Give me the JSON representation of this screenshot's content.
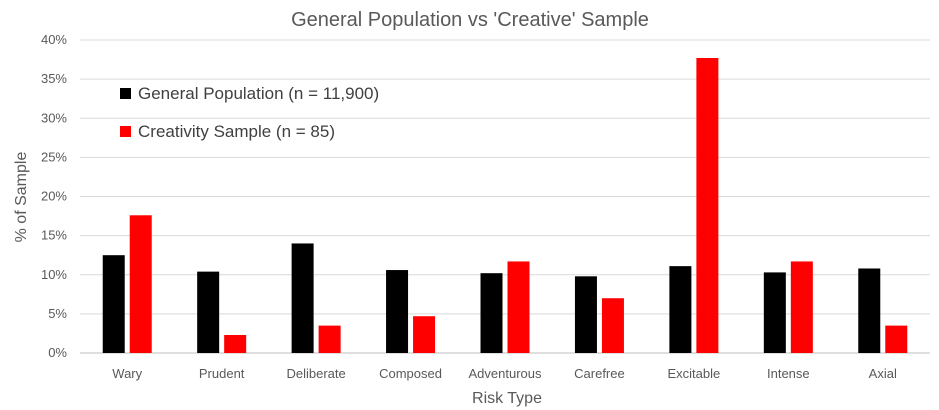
{
  "chart_data": {
    "type": "bar",
    "title": "General Population vs 'Creative' Sample",
    "xlabel": "Risk Type",
    "ylabel": "% of Sample",
    "categories": [
      "Wary",
      "Prudent",
      "Deliberate",
      "Composed",
      "Adventurous",
      "Carefree",
      "Excitable",
      "Intense",
      "Axial"
    ],
    "series": [
      {
        "name": "General Population (n = 11,900)",
        "color": "#000000",
        "values": [
          12.5,
          10.4,
          14.0,
          10.6,
          10.2,
          9.8,
          11.1,
          10.3,
          10.8
        ]
      },
      {
        "name": "Creativity Sample (n = 85)",
        "color": "#ff0000",
        "values": [
          17.6,
          2.3,
          3.5,
          4.7,
          11.7,
          7.0,
          37.7,
          11.7,
          3.5
        ]
      }
    ],
    "ylim": [
      0,
      40
    ],
    "yticks": [
      "0%",
      "5%",
      "10%",
      "15%",
      "20%",
      "25%",
      "30%",
      "35%",
      "40%"
    ],
    "grid": true,
    "legend_position": "top-left"
  }
}
